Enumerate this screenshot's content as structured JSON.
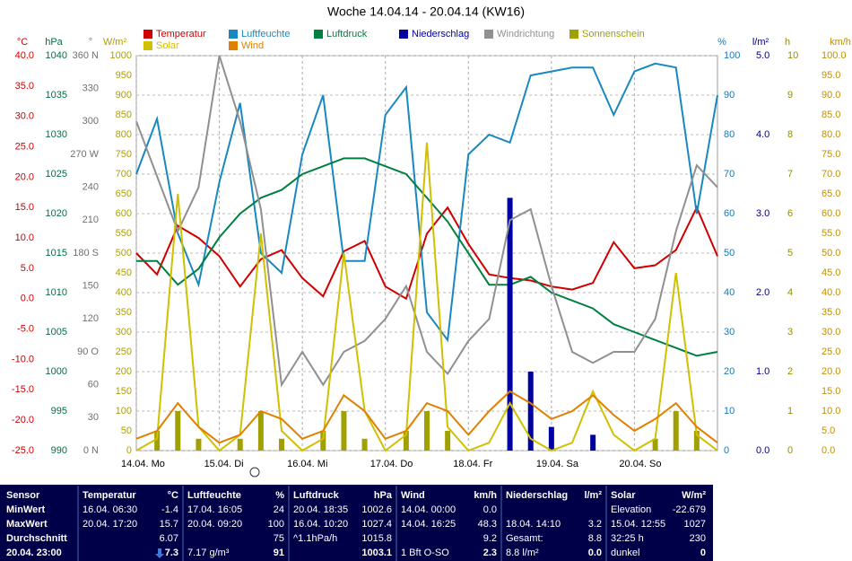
{
  "chart_data": {
    "type": "line",
    "title": "Woche 14.04.14 - 20.04.14 (KW16)",
    "categories": [
      "14.04. Mo",
      null,
      null,
      null,
      "15.04. Di",
      null,
      null,
      null,
      "16.04. Mi",
      null,
      null,
      null,
      "17.04. Do",
      null,
      null,
      null,
      "18.04. Fr",
      null,
      null,
      null,
      "19.04. Sa",
      null,
      null,
      null,
      "20.04. So",
      null,
      null,
      null,
      null
    ],
    "axes": [
      {
        "label": "°C",
        "color": "#d00000",
        "ylim": [
          -25,
          40
        ],
        "ticks": [
          {
            "value": 40,
            "label": "40.0"
          },
          {
            "value": 35,
            "label": "35.0"
          },
          {
            "value": 30,
            "label": "30.0"
          },
          {
            "value": 25,
            "label": "25.0"
          },
          {
            "value": 20,
            "label": "20.0"
          },
          {
            "value": 15,
            "label": "15.0"
          },
          {
            "value": 10,
            "label": "10.0"
          },
          {
            "value": 5,
            "label": "5.0"
          },
          {
            "value": 0,
            "label": "0.0"
          },
          {
            "value": -5,
            "label": "-5.0"
          },
          {
            "value": -10,
            "label": "-10.0"
          },
          {
            "value": -15,
            "label": "-15.0"
          },
          {
            "value": -20,
            "label": "-20.0"
          },
          {
            "value": -25,
            "label": "-25.0"
          }
        ]
      },
      {
        "label": "hPa",
        "color": "#007040",
        "ylim": [
          990,
          1040
        ],
        "ticks": [
          1040,
          1035,
          1030,
          1025,
          1020,
          1015,
          1010,
          1005,
          1000,
          995,
          990
        ]
      },
      {
        "label": "°",
        "color": "#707070",
        "ylim": [
          0,
          360
        ],
        "ticks": [
          {
            "value": 360,
            "label": "360 N"
          },
          330,
          300,
          {
            "value": 270,
            "label": "270 W"
          },
          240,
          210,
          {
            "value": 180,
            "label": "180 S"
          },
          150,
          120,
          {
            "value": 90,
            "label": "90 O"
          },
          60,
          30,
          {
            "value": 0,
            "label": "0 N"
          }
        ]
      },
      {
        "label": "W/m²",
        "color": "#b0a000",
        "ylim": [
          0,
          1000
        ],
        "ticks": [
          1000,
          950,
          900,
          850,
          800,
          750,
          700,
          650,
          600,
          550,
          500,
          450,
          400,
          350,
          300,
          250,
          200,
          150,
          100,
          50,
          0
        ]
      },
      {
        "label": "%",
        "color": "#1a78b0",
        "ylim": [
          0,
          100
        ],
        "grid": true,
        "ticks": [
          100,
          90,
          80,
          70,
          60,
          50,
          40,
          30,
          20,
          10,
          0
        ]
      },
      {
        "label": "l/m²",
        "color": "#000080",
        "ylim": [
          0,
          5
        ],
        "ticks": [
          {
            "value": 5,
            "label": "5.0"
          },
          {
            "value": 4,
            "label": "4.0"
          },
          {
            "value": 3,
            "label": "3.0"
          },
          {
            "value": 2,
            "label": "2.0"
          },
          {
            "value": 1,
            "label": "1.0"
          },
          {
            "value": 0,
            "label": "0.0"
          }
        ]
      },
      {
        "label": "h",
        "color": "#909000",
        "ylim": [
          0,
          10
        ],
        "ticks": [
          10,
          9,
          8,
          7,
          6,
          5,
          4,
          3,
          2,
          1,
          0
        ]
      },
      {
        "label": "km/h",
        "color": "#c09000",
        "ylim": [
          0,
          100
        ],
        "ticks": [
          {
            "value": 100,
            "label": "100.0"
          },
          {
            "value": 95,
            "label": "95.0"
          },
          {
            "value": 90,
            "label": "90.0"
          },
          {
            "value": 85,
            "label": "85.0"
          },
          {
            "value": 80,
            "label": "80.0"
          },
          {
            "value": 75,
            "label": "75.0"
          },
          {
            "value": 70,
            "label": "70.0"
          },
          {
            "value": 65,
            "label": "65.0"
          },
          {
            "value": 60,
            "label": "60.0"
          },
          {
            "value": 55,
            "label": "55.0"
          },
          {
            "value": 50,
            "label": "50.0"
          },
          {
            "value": 45,
            "label": "45.0"
          },
          {
            "value": 40,
            "label": "40.0"
          },
          {
            "value": 35,
            "label": "35.0"
          },
          {
            "value": 30,
            "label": "30.0"
          },
          {
            "value": 25,
            "label": "25.0"
          },
          {
            "value": 20,
            "label": "20.0"
          },
          {
            "value": 15,
            "label": "15.0"
          },
          {
            "value": 10,
            "label": "10.0"
          },
          {
            "value": 5,
            "label": "5.0"
          },
          {
            "value": 0,
            "label": "0.0"
          }
        ]
      }
    ],
    "series": [
      {
        "name": "Temperatur",
        "color": "#d00000",
        "axis": 0,
        "type": "line",
        "values": [
          7.5,
          4,
          12,
          10,
          7,
          2,
          6.5,
          8,
          3.4,
          0.4,
          7.8,
          9.5,
          2,
          0,
          10.7,
          15,
          9,
          4,
          3.4,
          3,
          2,
          1.5,
          2.6,
          9.3,
          5,
          5.5,
          8,
          15,
          7
        ]
      },
      {
        "name": "Luftfeuchte",
        "color": "#1a88c0",
        "axis": 4,
        "type": "line",
        "values": [
          70,
          84,
          55,
          42,
          68,
          88,
          50,
          45,
          75,
          90,
          48,
          48,
          85,
          92,
          35,
          28,
          75,
          80,
          78,
          95,
          96,
          97,
          97,
          85,
          96,
          98,
          97,
          60,
          90
        ]
      },
      {
        "name": "Luftdruck",
        "color": "#008040",
        "axis": 1,
        "type": "line",
        "values": [
          1014,
          1014,
          1011,
          1013,
          1017,
          1020,
          1022,
          1023,
          1025,
          1026,
          1027,
          1027,
          1026,
          1025,
          1022,
          1019,
          1015,
          1011,
          1011,
          1012,
          1010,
          1009,
          1008,
          1006,
          1005,
          1004,
          1003,
          1002,
          1002.5
        ]
      },
      {
        "name": "Niederschlag",
        "color": "#0000a0",
        "axis": 5,
        "type": "bar",
        "values": [
          0,
          0,
          0,
          0,
          0,
          0,
          0,
          0,
          0,
          0,
          0,
          0,
          0,
          0,
          0,
          0,
          0,
          0,
          3.2,
          1,
          0.3,
          0,
          0.2,
          0,
          0,
          0,
          0,
          0,
          0
        ]
      },
      {
        "name": "Windrichtung",
        "color": "#909090",
        "axis": 2,
        "type": "line",
        "values": [
          300,
          250,
          200,
          240,
          360,
          300,
          220,
          60,
          90,
          60,
          90,
          100,
          120,
          150,
          90,
          70,
          100,
          120,
          210,
          220,
          150,
          90,
          80,
          90,
          90,
          120,
          200,
          260,
          240
        ]
      },
      {
        "name": "Sonnenschein",
        "color": "#a0a000",
        "axis": 6,
        "type": "bar",
        "values": [
          0,
          0.5,
          1,
          0.3,
          0,
          0.3,
          1,
          0.3,
          0,
          0.5,
          1,
          0.3,
          0,
          0.5,
          1,
          0.5,
          0,
          0,
          0,
          0,
          0,
          0,
          0,
          0,
          0,
          0.3,
          1,
          0.5,
          0
        ]
      },
      {
        "name": "Solar",
        "color": "#d0c000",
        "axis": 3,
        "type": "line",
        "values": [
          0,
          30,
          650,
          60,
          0,
          40,
          550,
          50,
          0,
          30,
          500,
          100,
          0,
          40,
          780,
          60,
          0,
          20,
          120,
          30,
          0,
          20,
          150,
          40,
          0,
          30,
          450,
          40,
          0
        ]
      },
      {
        "name": "Wind",
        "color": "#e08000",
        "axis": 7,
        "type": "line",
        "values": [
          3,
          5,
          12,
          6,
          2,
          4,
          10,
          8,
          3,
          5,
          14,
          10,
          3,
          5,
          12,
          10,
          4,
          10,
          15,
          12,
          8,
          10,
          14,
          9,
          5,
          8,
          12,
          6,
          2
        ]
      }
    ]
  },
  "table": {
    "panels": [
      {
        "title": "Sensor",
        "rows": [
          [
            "MinWert"
          ],
          [
            "MaxWert"
          ],
          [
            "Durchschnitt"
          ],
          [
            "20.04. 23:00"
          ]
        ]
      },
      {
        "title": "Temperatur",
        "unit": "°C",
        "rows": [
          [
            "16.04. 06:30",
            "-1.4"
          ],
          [
            "20.04. 17:20",
            "15.7"
          ],
          [
            null,
            "6.07"
          ],
          [
            null,
            "7.3"
          ]
        ]
      },
      {
        "title": "Luftfeuchte",
        "unit": "%",
        "rows": [
          [
            "17.04. 16:05",
            "24"
          ],
          [
            "20.04. 09:20",
            "100"
          ],
          [
            null,
            "75"
          ],
          [
            "7.17 g/m³",
            "91"
          ]
        ]
      },
      {
        "title": "Luftdruck",
        "unit": "hPa",
        "rows": [
          [
            "20.04. 18:35",
            "1002.6"
          ],
          [
            "16.04. 10:20",
            "1027.4"
          ],
          [
            "^1.1hPa/h",
            "1015.8"
          ],
          [
            null,
            "1003.1"
          ]
        ]
      },
      {
        "title": "Wind",
        "unit": "km/h",
        "rows": [
          [
            "14.04. 00:00",
            "0.0"
          ],
          [
            "14.04. 16:25",
            "48.3"
          ],
          [
            null,
            "9.2"
          ],
          [
            "1 Bft O-SO",
            "2.3"
          ]
        ]
      },
      {
        "title": "Niederschlag",
        "unit": "l/m²",
        "rows": [
          [
            null,
            null
          ],
          [
            "18.04. 14:10",
            "3.2"
          ],
          [
            "Gesamt:",
            "8.8"
          ],
          [
            "8.8 l/m²",
            "0.0"
          ]
        ]
      },
      {
        "title": "Solar",
        "unit": "W/m²",
        "rows": [
          [
            "Elevation",
            "-22.679"
          ],
          [
            "15.04. 12:55",
            "1027"
          ],
          [
            "32:25 h",
            "230"
          ],
          [
            "dunkel",
            "0"
          ]
        ]
      }
    ]
  }
}
